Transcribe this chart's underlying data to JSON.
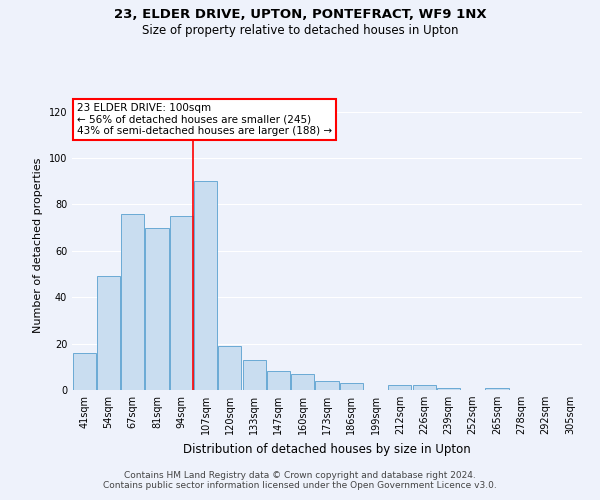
{
  "title": "23, ELDER DRIVE, UPTON, PONTEFRACT, WF9 1NX",
  "subtitle": "Size of property relative to detached houses in Upton",
  "xlabel": "Distribution of detached houses by size in Upton",
  "ylabel": "Number of detached properties",
  "categories": [
    "41sqm",
    "54sqm",
    "67sqm",
    "81sqm",
    "94sqm",
    "107sqm",
    "120sqm",
    "133sqm",
    "147sqm",
    "160sqm",
    "173sqm",
    "186sqm",
    "199sqm",
    "212sqm",
    "226sqm",
    "239sqm",
    "252sqm",
    "265sqm",
    "278sqm",
    "292sqm",
    "305sqm"
  ],
  "values": [
    16,
    49,
    76,
    70,
    75,
    90,
    19,
    13,
    8,
    7,
    4,
    3,
    0,
    2,
    2,
    1,
    0,
    1,
    0,
    0,
    0
  ],
  "bar_color": "#c9ddf0",
  "bar_edge_color": "#6aaad4",
  "highlight_line_color": "red",
  "annotation_text": "23 ELDER DRIVE: 100sqm\n← 56% of detached houses are smaller (245)\n43% of semi-detached houses are larger (188) →",
  "annotation_box_color": "white",
  "annotation_box_edge_color": "red",
  "ylim": [
    0,
    125
  ],
  "yticks": [
    0,
    20,
    40,
    60,
    80,
    100,
    120
  ],
  "footer_text": "Contains HM Land Registry data © Crown copyright and database right 2024.\nContains public sector information licensed under the Open Government Licence v3.0.",
  "background_color": "#eef2fb",
  "grid_color": "#ffffff",
  "title_fontsize": 9.5,
  "subtitle_fontsize": 8.5,
  "xlabel_fontsize": 8.5,
  "ylabel_fontsize": 8,
  "tick_fontsize": 7,
  "annotation_fontsize": 7.5,
  "footer_fontsize": 6.5
}
